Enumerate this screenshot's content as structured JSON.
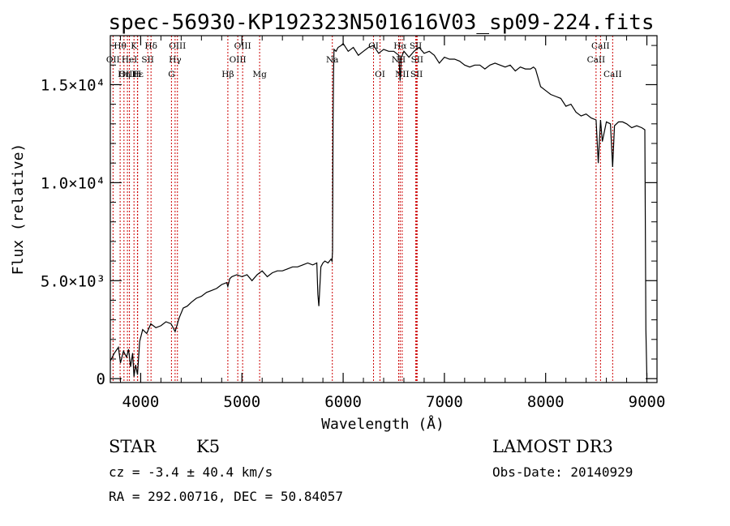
{
  "chart_data": {
    "type": "line",
    "title": "spec-56930-KP192323N501616V03_sp09-224.fits",
    "xlabel": "Wavelength (Å)",
    "ylabel": "Flux (relative)",
    "xlim": [
      3700,
      9100
    ],
    "ylim": [
      -200,
      17500
    ],
    "xticks": [
      {
        "value": 4000,
        "label": "4000"
      },
      {
        "value": 5000,
        "label": "5000"
      },
      {
        "value": 6000,
        "label": "6000"
      },
      {
        "value": 7000,
        "label": "7000"
      },
      {
        "value": 8000,
        "label": "8000"
      },
      {
        "value": 9000,
        "label": "9000"
      }
    ],
    "yticks": [
      {
        "value": 0,
        "label": "0"
      },
      {
        "value": 5000,
        "label": "5.0×10³"
      },
      {
        "value": 10000,
        "label": "1.0×10⁴"
      },
      {
        "value": 15000,
        "label": "1.5×10⁴"
      }
    ],
    "series": [
      {
        "name": "spectrum",
        "x": [
          3700,
          3740,
          3780,
          3800,
          3830,
          3860,
          3880,
          3900,
          3920,
          3934,
          3950,
          3968,
          3990,
          4020,
          4060,
          4100,
          4150,
          4200,
          4250,
          4300,
          4340,
          4380,
          4420,
          4460,
          4500,
          4550,
          4600,
          4650,
          4700,
          4750,
          4800,
          4850,
          4861,
          4880,
          4900,
          4950,
          5000,
          5050,
          5100,
          5150,
          5200,
          5250,
          5300,
          5350,
          5400,
          5450,
          5500,
          5550,
          5600,
          5650,
          5700,
          5740,
          5750,
          5760,
          5780,
          5800,
          5820,
          5850,
          5880,
          5890,
          5895,
          5900,
          5905,
          5910,
          5930,
          5950,
          5980,
          6000,
          6050,
          6100,
          6150,
          6200,
          6250,
          6300,
          6350,
          6400,
          6450,
          6500,
          6550,
          6563,
          6575,
          6600,
          6650,
          6700,
          6750,
          6800,
          6850,
          6900,
          6950,
          7000,
          7050,
          7100,
          7150,
          7200,
          7250,
          7300,
          7350,
          7400,
          7450,
          7500,
          7550,
          7600,
          7650,
          7700,
          7750,
          7800,
          7850,
          7880,
          7900,
          7950,
          8000,
          8050,
          8100,
          8150,
          8200,
          8250,
          8300,
          8350,
          8400,
          8450,
          8498,
          8520,
          8542,
          8560,
          8600,
          8640,
          8662,
          8680,
          8720,
          8760,
          8800,
          8850,
          8900,
          8950,
          8980,
          8990,
          9000
        ],
        "y": [
          900,
          1300,
          1600,
          800,
          1400,
          1100,
          1500,
          600,
          1300,
          100,
          700,
          200,
          1900,
          2500,
          2300,
          2800,
          2600,
          2700,
          2900,
          2800,
          2400,
          3100,
          3600,
          3700,
          3900,
          4100,
          4200,
          4400,
          4500,
          4600,
          4800,
          4900,
          4700,
          5100,
          5200,
          5300,
          5200,
          5300,
          5000,
          5300,
          5500,
          5200,
          5400,
          5500,
          5500,
          5600,
          5700,
          5700,
          5800,
          5900,
          5800,
          5900,
          4300,
          3700,
          5700,
          5900,
          6000,
          5900,
          6100,
          6000,
          6500,
          13000,
          15600,
          16800,
          16700,
          16900,
          17000,
          17100,
          16700,
          16900,
          16500,
          16700,
          16900,
          17000,
          16600,
          16800,
          16700,
          16700,
          16500,
          15200,
          16400,
          16700,
          16400,
          16700,
          16900,
          16600,
          16700,
          16500,
          16100,
          16400,
          16300,
          16300,
          16200,
          16000,
          15900,
          16000,
          16000,
          15800,
          16000,
          16100,
          16000,
          15900,
          16000,
          15700,
          15900,
          15800,
          15800,
          15900,
          15800,
          14900,
          14700,
          14500,
          14400,
          14300,
          13900,
          14000,
          13600,
          13400,
          13500,
          13300,
          13200,
          11000,
          13200,
          12100,
          13100,
          13000,
          10800,
          12900,
          13100,
          13100,
          13000,
          12800,
          12900,
          12800,
          12700,
          2500,
          100
        ]
      }
    ],
    "lines": [
      {
        "name": "Hθ",
        "x": 3797,
        "row": 0
      },
      {
        "name": "OII",
        "x": 3727,
        "row": 1
      },
      {
        "name": "OIII",
        "x": 3869,
        "row": 2
      },
      {
        "name": "Hη",
        "x": 3835,
        "row": 2
      },
      {
        "name": "K",
        "x": 3934,
        "row": 0
      },
      {
        "name": "HeI",
        "x": 3889,
        "row": 1
      },
      {
        "name": "SII",
        "x": 4070,
        "row": 1
      },
      {
        "name": "Hε",
        "x": 3970,
        "row": 2
      },
      {
        "name": "H",
        "x": 3968,
        "row": 2
      },
      {
        "name": "Hδ",
        "x": 4102,
        "row": 0
      },
      {
        "name": "OIII",
        "x": 4363,
        "row": 0
      },
      {
        "name": "Hγ",
        "x": 4340,
        "row": 1
      },
      {
        "name": "G",
        "x": 4304,
        "row": 2
      },
      {
        "name": "Hβ",
        "x": 4861,
        "row": 2
      },
      {
        "name": "OIII",
        "x": 4959,
        "row": 1
      },
      {
        "name": "OIII",
        "x": 5007,
        "row": 0
      },
      {
        "name": "Mg",
        "x": 5175,
        "row": 2
      },
      {
        "name": "Na",
        "x": 5893,
        "row": 1
      },
      {
        "name": "OI",
        "x": 6300,
        "row": 0
      },
      {
        "name": "OI",
        "x": 6364,
        "row": 2
      },
      {
        "name": "Hα",
        "x": 6563,
        "row": 0
      },
      {
        "name": "NII",
        "x": 6548,
        "row": 1
      },
      {
        "name": "NII",
        "x": 6583,
        "row": 2
      },
      {
        "name": "SII",
        "x": 6717,
        "row": 0
      },
      {
        "name": "SII",
        "x": 6731,
        "row": 1
      },
      {
        "name": "SII",
        "x": 6725,
        "row": 2
      },
      {
        "name": "CaII",
        "x": 8498,
        "row": 1
      },
      {
        "name": "CaII",
        "x": 8542,
        "row": 0
      },
      {
        "name": "CaII",
        "x": 8662,
        "row": 2
      }
    ]
  },
  "footer": {
    "class_text": "STAR",
    "subclass_text": "K5",
    "cz_text": "cz = -3.4 ± 40.4 km/s",
    "radec_text": "RA = 292.00716, DEC =  50.84057",
    "survey_text": "LAMOST DR3",
    "obsdate_text": "Obs-Date: 20140929"
  },
  "colors": {
    "spectrum": "#000000",
    "line_marker": "#cc0000",
    "axes": "#000000"
  }
}
